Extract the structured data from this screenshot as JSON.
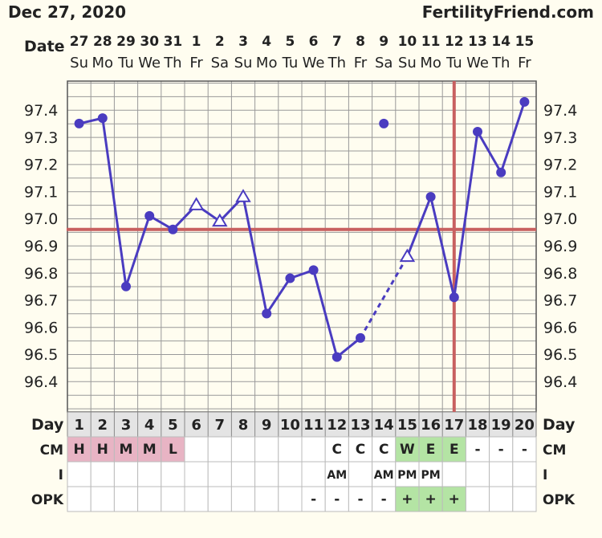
{
  "header": {
    "date": "Dec 27, 2020",
    "site": "FertilityFriend.com"
  },
  "chart_data": {
    "type": "line",
    "title": "",
    "xlabel": "",
    "ylabel": "",
    "ylim": [
      96.3,
      97.6
    ],
    "yticks": [
      "97.4",
      "97.3",
      "97.2",
      "97.1",
      "97.0",
      "96.9",
      "96.8",
      "96.7",
      "96.6",
      "96.5",
      "96.4"
    ],
    "date_label": "Date",
    "dates": [
      "27",
      "28",
      "29",
      "30",
      "31",
      "1",
      "2",
      "3",
      "4",
      "5",
      "6",
      "7",
      "8",
      "9",
      "10",
      "11",
      "12",
      "13",
      "14",
      "15"
    ],
    "weekdays": [
      "Su",
      "Mo",
      "Tu",
      "We",
      "Th",
      "Fr",
      "Sa",
      "Su",
      "Mo",
      "Tu",
      "We",
      "Th",
      "Fr",
      "Sa",
      "Su",
      "Mo",
      "Tu",
      "We",
      "Th",
      "Fr"
    ],
    "day_label": "Day",
    "days": [
      "1",
      "2",
      "3",
      "4",
      "5",
      "6",
      "7",
      "8",
      "9",
      "10",
      "11",
      "12",
      "13",
      "14",
      "15",
      "16",
      "17",
      "18",
      "19",
      "20"
    ],
    "temperatures": [
      {
        "day": 1,
        "value": 97.35,
        "marker": "filled"
      },
      {
        "day": 2,
        "value": 97.37,
        "marker": "filled"
      },
      {
        "day": 3,
        "value": 96.75,
        "marker": "filled"
      },
      {
        "day": 4,
        "value": 97.01,
        "marker": "filled"
      },
      {
        "day": 5,
        "value": 96.96,
        "marker": "filled"
      },
      {
        "day": 6,
        "value": 97.05,
        "marker": "open-triangle"
      },
      {
        "day": 7,
        "value": 96.99,
        "marker": "open-triangle"
      },
      {
        "day": 8,
        "value": 97.08,
        "marker": "open-triangle"
      },
      {
        "day": 9,
        "value": 96.65,
        "marker": "filled"
      },
      {
        "day": 10,
        "value": 96.78,
        "marker": "filled"
      },
      {
        "day": 11,
        "value": 96.81,
        "marker": "filled"
      },
      {
        "day": 12,
        "value": 96.49,
        "marker": "filled"
      },
      {
        "day": 13,
        "value": 96.56,
        "marker": "filled"
      },
      {
        "day": 14,
        "value": 97.35,
        "marker": "filled",
        "disconnected": true
      },
      {
        "day": 15,
        "value": 96.86,
        "marker": "open-triangle"
      },
      {
        "day": 16,
        "value": 97.08,
        "marker": "filled"
      },
      {
        "day": 17,
        "value": 96.71,
        "marker": "filled"
      },
      {
        "day": 18,
        "value": 97.32,
        "marker": "filled"
      },
      {
        "day": 19,
        "value": 97.17,
        "marker": "filled"
      },
      {
        "day": 20,
        "value": 97.43,
        "marker": "filled"
      }
    ],
    "dashed_segment": [
      13,
      15
    ],
    "coverline": 96.96,
    "ovulation_day": 17,
    "rows": [
      {
        "label": "CM",
        "cells": [
          "H",
          "H",
          "M",
          "M",
          "L",
          "",
          "",
          "",
          "",
          "",
          "",
          "C",
          "C",
          "C",
          "W",
          "E",
          "E",
          "-",
          "-",
          "-"
        ],
        "colors": [
          "pink",
          "pink",
          "pink",
          "pink",
          "pink",
          "",
          "",
          "",
          "",
          "",
          "",
          "",
          "",
          "",
          "green",
          "green",
          "green",
          "",
          "",
          ""
        ]
      },
      {
        "label": "I",
        "cells": [
          "",
          "",
          "",
          "",
          "",
          "",
          "",
          "",
          "",
          "",
          "",
          "AM",
          "",
          "AM",
          "PM",
          "PM",
          "",
          "",
          "",
          ""
        ],
        "colors": []
      },
      {
        "label": "OPK",
        "cells": [
          "",
          "",
          "",
          "",
          "",
          "",
          "",
          "",
          "",
          "",
          "-",
          "-",
          "-",
          "-",
          "+",
          "+",
          "+",
          "",
          "",
          ""
        ],
        "colors": [
          "",
          "",
          "",
          "",
          "",
          "",
          "",
          "",
          "",
          "",
          "",
          "",
          "",
          "",
          "green",
          "green",
          "green",
          "",
          "",
          ""
        ]
      }
    ],
    "colors": {
      "line": "#4a3cc0",
      "coverline": "#c86060",
      "grid": "#999999",
      "plot_bg": "#fffdf0",
      "pink": "#e8b4c4",
      "green": "#b4e4a4"
    }
  }
}
